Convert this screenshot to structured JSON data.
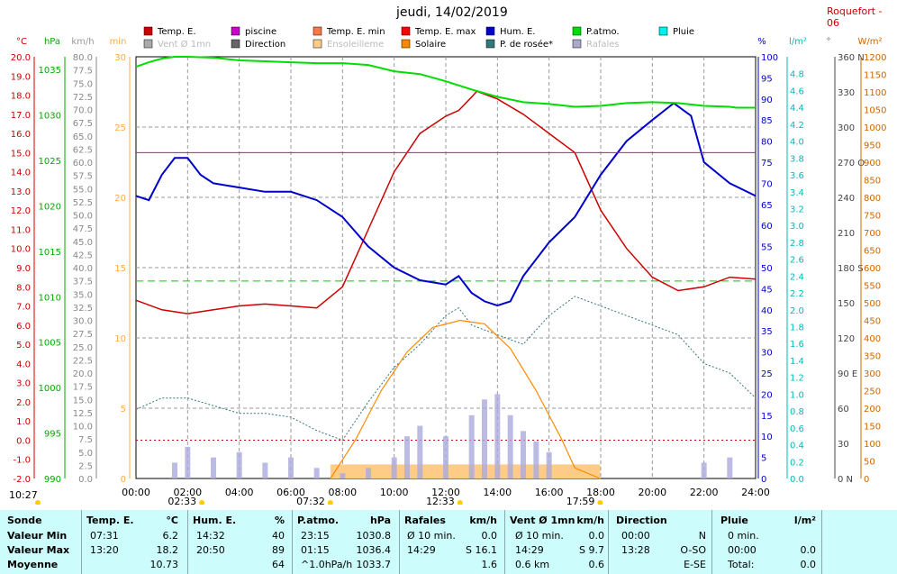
{
  "title": "jeudi, 14/02/2019",
  "station": "Roquefort - 06",
  "legend": [
    {
      "label": "Temp. E.",
      "color": "#cc0000"
    },
    {
      "label": "piscine",
      "color": "#cc00cc"
    },
    {
      "label": "Temp. E. min",
      "color": "#ff7744"
    },
    {
      "label": "Temp. E. max",
      "color": "#ff0000"
    },
    {
      "label": "Hum. E.",
      "color": "#0000cc"
    },
    {
      "label": "P.atmo.",
      "color": "#00dd00"
    },
    {
      "label": "Pluie",
      "color": "#00eeee"
    },
    {
      "label": "Vent Ø 1mn",
      "color": "#aaaaaa"
    },
    {
      "label": "Direction",
      "color": "#666666"
    },
    {
      "label": "Ensoleilleme",
      "color": "#ffcc88"
    },
    {
      "label": "Solaire",
      "color": "#ff8800"
    },
    {
      "label": "P. de rosée*",
      "color": "#337777"
    },
    {
      "label": "Rafales",
      "color": "#aaaacc"
    }
  ],
  "axis_units": {
    "temp": "°C",
    "pressure": "hPa",
    "wind": "km/h",
    "minutes": "min",
    "humidity": "%",
    "rain": "l/m²",
    "direction": "°",
    "solar": "W/m²"
  },
  "sun": {
    "rise": "07:32",
    "transit": "12:33",
    "set": "17:59",
    "moonrise": "10:27",
    "moonset": "02:33"
  },
  "chart_data": {
    "type": "line",
    "x_label": "time",
    "x_ticks": [
      "00:00",
      "02:00",
      "04:00",
      "06:00",
      "08:00",
      "10:00",
      "12:00",
      "14:00",
      "16:00",
      "18:00",
      "20:00",
      "22:00",
      "24:00"
    ],
    "axes": {
      "temp": {
        "range": [
          -2,
          20
        ],
        "ticks": [
          "20.0",
          "19.0",
          "18.0",
          "17.0",
          "16.0",
          "15.0",
          "14.0",
          "13.0",
          "12.0",
          "11.0",
          "10.0",
          "9.0",
          "8.0",
          "7.0",
          "6.0",
          "5.0",
          "4.0",
          "3.0",
          "2.0",
          "1.0",
          "0.0",
          "-1.0",
          "-2.0"
        ]
      },
      "pressure": {
        "range": [
          990,
          1036.4
        ],
        "ticks": [
          "1035",
          "1030",
          "1025",
          "1020",
          "1015",
          "1010",
          "1005",
          "1000",
          "995",
          "990"
        ]
      },
      "wind": {
        "range": [
          0,
          80
        ],
        "ticks": [
          "80.0",
          "77.5",
          "75.0",
          "72.5",
          "70.0",
          "67.5",
          "65.0",
          "62.5",
          "60.0",
          "57.5",
          "55.0",
          "52.5",
          "50.0",
          "47.5",
          "45.0",
          "42.5",
          "40.0",
          "37.5",
          "35.0",
          "32.5",
          "30.0",
          "27.5",
          "25.0",
          "22.5",
          "20.0",
          "17.5",
          "15.0",
          "12.5",
          "10.0",
          "7.5",
          "5.0",
          "2.5",
          "0.0"
        ]
      },
      "minutes": {
        "range": [
          0,
          30
        ],
        "ticks": [
          "30",
          "25",
          "20",
          "15",
          "10",
          "5",
          "0"
        ]
      },
      "humidity": {
        "range": [
          0,
          100
        ],
        "ticks": [
          "100",
          "95",
          "90",
          "85",
          "80",
          "75",
          "70",
          "65",
          "60",
          "55",
          "50",
          "45",
          "40",
          "35",
          "30",
          "25",
          "20",
          "15",
          "10",
          "5",
          "0"
        ]
      },
      "rain": {
        "range": [
          0,
          5
        ],
        "ticks": [
          "4.8",
          "4.6",
          "4.4",
          "4.2",
          "4.0",
          "3.8",
          "3.6",
          "3.4",
          "3.2",
          "3.0",
          "2.8",
          "2.6",
          "2.4",
          "2.2",
          "2.0",
          "1.8",
          "1.6",
          "1.4",
          "1.2",
          "1.0",
          "0.8",
          "0.6",
          "0.4",
          "0.2",
          "0.0"
        ]
      },
      "direction": {
        "range": [
          0,
          360
        ],
        "ticks": [
          "360 N",
          "330",
          "300",
          "270 O",
          "240",
          "210",
          "180 S",
          "150",
          "120",
          "90 E",
          "60",
          "30",
          "0 N"
        ]
      },
      "solar": {
        "range": [
          0,
          1200
        ],
        "ticks": [
          "1200",
          "1150",
          "1100",
          "1050",
          "1000",
          "950",
          "900",
          "850",
          "800",
          "750",
          "700",
          "650",
          "600",
          "550",
          "500",
          "450",
          "400",
          "350",
          "300",
          "250",
          "200",
          "150",
          "100",
          "50",
          "0"
        ]
      }
    },
    "series": [
      {
        "name": "Temp. E.",
        "axis": "temp",
        "x": [
          0,
          1,
          2,
          3,
          4,
          5,
          6,
          7,
          8,
          9,
          10,
          11,
          12,
          12.5,
          13,
          13.2,
          14,
          15,
          16,
          17,
          18,
          19,
          20,
          21,
          22,
          23,
          24
        ],
        "y": [
          7.3,
          6.8,
          6.6,
          6.8,
          7.0,
          7.1,
          7.0,
          6.9,
          8.0,
          11.0,
          14.0,
          16.0,
          16.9,
          17.2,
          17.9,
          18.2,
          17.8,
          17.0,
          16.0,
          15.0,
          12.0,
          10.0,
          8.5,
          7.8,
          8.0,
          8.5,
          8.4
        ]
      },
      {
        "name": "Hum. E.",
        "axis": "humidity",
        "x": [
          0,
          0.5,
          1,
          1.5,
          2,
          2.5,
          3,
          4,
          5,
          6,
          7,
          8,
          9,
          10,
          11,
          12,
          12.5,
          13,
          13.5,
          14,
          14.5,
          15,
          16,
          17,
          18,
          19,
          20,
          20.83,
          21.5,
          22,
          23,
          24
        ],
        "y": [
          67,
          66,
          72,
          76,
          76,
          72,
          70,
          69,
          68,
          68,
          66,
          62,
          55,
          50,
          47,
          46,
          48,
          44,
          42,
          41,
          42,
          48,
          56,
          62,
          72,
          80,
          85,
          89,
          86,
          75,
          70,
          67
        ]
      },
      {
        "name": "P.atmo.",
        "axis": "pressure",
        "x": [
          0,
          0.5,
          1,
          1.5,
          2,
          3,
          4,
          5,
          6,
          7,
          8,
          9,
          10,
          11,
          12,
          13,
          14,
          15,
          16,
          17,
          18,
          19,
          20,
          21,
          22,
          23,
          23.25,
          24
        ],
        "y": [
          1035.3,
          1035.8,
          1036.2,
          1036.4,
          1036.4,
          1036.3,
          1036.0,
          1035.9,
          1035.8,
          1035.7,
          1035.7,
          1035.5,
          1034.8,
          1034.5,
          1033.7,
          1032.8,
          1032.0,
          1031.4,
          1031.2,
          1030.9,
          1031.0,
          1031.3,
          1031.4,
          1031.3,
          1031.0,
          1030.9,
          1030.8,
          1030.8
        ]
      },
      {
        "name": "P. de rosée*",
        "axis": "temp",
        "x": [
          0,
          1,
          2,
          3,
          4,
          5,
          6,
          7,
          8,
          9,
          10,
          11,
          12,
          12.5,
          13,
          14,
          15,
          16,
          17,
          18,
          19,
          20,
          21,
          22,
          23,
          24
        ],
        "y": [
          1.6,
          2.2,
          2.2,
          1.8,
          1.4,
          1.4,
          1.2,
          0.5,
          0.0,
          2.0,
          3.8,
          5.0,
          6.5,
          6.9,
          6.0,
          5.5,
          5.0,
          6.5,
          7.5,
          7.0,
          6.5,
          6.0,
          5.5,
          4.0,
          3.5,
          2.2
        ]
      },
      {
        "name": "Solaire",
        "axis": "solar",
        "x": [
          7.53,
          8.5,
          9.5,
          10.5,
          11.5,
          12.55,
          13.5,
          14.5,
          15.5,
          16.5,
          17.0,
          17.98
        ],
        "y": [
          0,
          110,
          250,
          360,
          430,
          450,
          440,
          370,
          250,
          110,
          30,
          0
        ]
      },
      {
        "name": "piscine",
        "axis": "temp",
        "x": [
          0,
          24
        ],
        "y": [
          15.0,
          15.0
        ]
      },
      {
        "name": "Rafales",
        "axis": "wind",
        "x": [
          1.5,
          2,
          3,
          4,
          5,
          6,
          7,
          8,
          9,
          10,
          10.5,
          11,
          12,
          13,
          13.5,
          14,
          14.5,
          15,
          15.5,
          16,
          22,
          23
        ],
        "y": [
          3,
          6,
          4,
          5,
          3,
          4,
          2,
          1,
          2,
          4,
          8,
          10,
          8,
          12,
          15,
          16,
          12,
          9,
          7,
          5,
          3,
          4
        ]
      }
    ],
    "ensoleillement": {
      "axis": "minutes",
      "from": 7.53,
      "to": 17.98,
      "y": 1
    },
    "reference_line": {
      "axis": "temp",
      "value": 8.3
    },
    "zero_line": {
      "axis": "temp",
      "value": 0
    }
  },
  "summary": {
    "headers": [
      "Sonde",
      "Temp. E.",
      "°C",
      "Hum. E.",
      "%",
      "P.atmo.",
      "hPa",
      "Rafales",
      "km/h",
      "Vent Ø 1mn",
      "km/h",
      "Direction",
      "Pluie",
      "l/m²"
    ],
    "rows": [
      {
        "label": "Valeur Min",
        "cells": [
          "07:31",
          "6.2",
          "14:32",
          "40",
          "23:15",
          "1030.8",
          "Ø 10 min.",
          "0.0",
          "Ø 10 min.",
          "0.0",
          "00:00",
          "N",
          "0 min.",
          ""
        ]
      },
      {
        "label": "Valeur Max",
        "cells": [
          "13:20",
          "18.2",
          "20:50",
          "89",
          "01:15",
          "1036.4",
          "14:29",
          "S 16.1",
          "14:29",
          "S 9.7",
          "13:28",
          "O-SO",
          "00:00",
          "0.0"
        ]
      },
      {
        "label": "Moyenne",
        "cells": [
          "",
          "10.73",
          "",
          "64",
          "^1.0hPa/h",
          "1033.7",
          "",
          "1.6",
          "0.6 km",
          "0.6",
          "",
          "E-SE",
          "Total:",
          "0.0"
        ]
      }
    ]
  }
}
